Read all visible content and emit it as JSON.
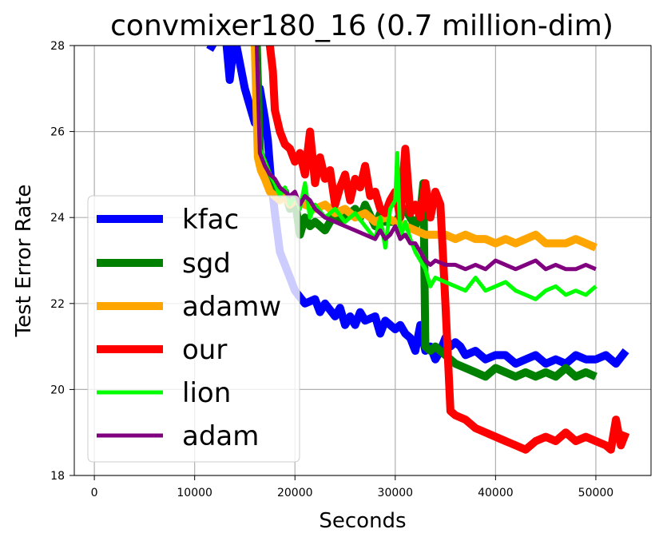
{
  "chart_data": {
    "type": "line",
    "title": "convmixer180_16 (0.7 million-dim)",
    "xlabel": "Seconds",
    "ylabel": "Test Error Rate",
    "xlim": [
      -2000,
      55500
    ],
    "ylim": [
      18,
      28
    ],
    "xticks": [
      0,
      10000,
      20000,
      30000,
      40000,
      50000
    ],
    "yticks": [
      18,
      20,
      22,
      24,
      26,
      28
    ],
    "grid": true,
    "legend_position": "lower-left",
    "series": [
      {
        "name": "kfac",
        "color": "#0000ff",
        "x": [
          11500,
          12500,
          13000,
          13500,
          14000,
          14500,
          15000,
          15500,
          16000,
          16500,
          17000,
          17300,
          17600,
          18000,
          18500,
          19000,
          19500,
          20000,
          21000,
          22000,
          22500,
          23000,
          24000,
          24500,
          25000,
          25500,
          26000,
          26500,
          27000,
          28000,
          28500,
          29000,
          29500,
          30000,
          30500,
          31000,
          31500,
          32000,
          32500,
          33000,
          33500,
          34000,
          34500,
          35000,
          35500,
          36000,
          36500,
          37000,
          38000,
          39000,
          40000,
          41000,
          42000,
          43000,
          44000,
          45000,
          46000,
          47000,
          48000,
          49000,
          50000,
          51000,
          52000,
          53000
        ],
        "values": [
          27.9,
          28.3,
          28.5,
          27.2,
          28.2,
          27.6,
          27.0,
          26.6,
          26.2,
          27.0,
          26.3,
          25.8,
          24.9,
          24.1,
          23.2,
          22.9,
          22.6,
          22.3,
          22.0,
          22.1,
          21.8,
          22.0,
          21.7,
          21.9,
          21.5,
          21.7,
          21.5,
          21.8,
          21.6,
          21.7,
          21.3,
          21.6,
          21.5,
          21.4,
          21.5,
          21.3,
          21.2,
          20.9,
          21.5,
          20.9,
          21.0,
          20.7,
          20.9,
          21.2,
          21.0,
          21.1,
          21.0,
          20.8,
          20.9,
          20.7,
          20.8,
          20.8,
          20.6,
          20.7,
          20.8,
          20.6,
          20.7,
          20.6,
          20.8,
          20.7,
          20.7,
          20.8,
          20.6,
          20.9
        ]
      },
      {
        "name": "sgd",
        "color": "#008000",
        "x": [
          16200,
          16500,
          17000,
          17500,
          18000,
          18500,
          19000,
          19500,
          20000,
          20500,
          21000,
          21500,
          22000,
          23000,
          24000,
          24500,
          25000,
          26000,
          26500,
          27000,
          28000,
          28500,
          29000,
          30000,
          31000,
          31500,
          32000,
          32500,
          32800,
          33000,
          33500,
          34000,
          35000,
          36000,
          37000,
          38000,
          39000,
          40000,
          41000,
          42000,
          43000,
          44000,
          45000,
          46000,
          47000,
          48000,
          49000,
          50000
        ],
        "values": [
          28.0,
          25.5,
          25.2,
          24.9,
          24.7,
          24.5,
          24.6,
          24.2,
          24.4,
          23.6,
          24.0,
          23.8,
          23.9,
          23.7,
          24.1,
          23.9,
          24.0,
          24.2,
          24.0,
          24.3,
          23.8,
          24.1,
          23.9,
          23.9,
          24.2,
          24.0,
          23.8,
          24.1,
          24.8,
          21.0,
          20.9,
          21.0,
          20.8,
          20.6,
          20.5,
          20.4,
          20.3,
          20.5,
          20.4,
          20.3,
          20.4,
          20.3,
          20.4,
          20.3,
          20.5,
          20.3,
          20.4,
          20.3
        ]
      },
      {
        "name": "adamw",
        "color": "#ffa500",
        "x": [
          16000,
          16300,
          16600,
          17000,
          17500,
          18000,
          18500,
          19000,
          19500,
          20000,
          21000,
          22000,
          23000,
          24000,
          25000,
          26000,
          27000,
          28000,
          29000,
          30000,
          31000,
          32000,
          33000,
          34000,
          35000,
          36000,
          37000,
          38000,
          39000,
          40000,
          41000,
          42000,
          43000,
          44000,
          45000,
          46000,
          47000,
          48000,
          49000,
          50000
        ],
        "values": [
          28.0,
          25.4,
          25.1,
          24.9,
          24.6,
          24.5,
          24.4,
          24.5,
          24.3,
          24.4,
          24.3,
          24.2,
          24.3,
          24.1,
          24.2,
          24.0,
          24.1,
          23.9,
          24.0,
          23.9,
          23.8,
          23.7,
          23.6,
          23.6,
          23.6,
          23.5,
          23.6,
          23.5,
          23.5,
          23.4,
          23.5,
          23.4,
          23.5,
          23.6,
          23.4,
          23.4,
          23.4,
          23.5,
          23.4,
          23.3
        ]
      },
      {
        "name": "our",
        "color": "#ff0000",
        "x": [
          17400,
          17800,
          18000,
          18500,
          19000,
          19500,
          20000,
          20500,
          21000,
          21500,
          22000,
          22500,
          23000,
          23500,
          24000,
          24500,
          25000,
          25500,
          26000,
          26500,
          27000,
          27500,
          28000,
          28500,
          29000,
          29500,
          30000,
          30500,
          31000,
          31500,
          32000,
          32500,
          33000,
          33500,
          34000,
          34500,
          35000,
          35500,
          36000,
          37000,
          38000,
          39000,
          40000,
          41000,
          42000,
          43000,
          44000,
          45000,
          46000,
          47000,
          48000,
          49000,
          50000,
          51000,
          51500,
          52000,
          52500,
          53000
        ],
        "values": [
          28.2,
          27.4,
          26.5,
          26.0,
          25.7,
          25.6,
          25.3,
          25.5,
          25.0,
          26.0,
          24.8,
          25.4,
          24.9,
          25.1,
          24.3,
          24.7,
          25.0,
          24.4,
          24.9,
          24.7,
          25.2,
          24.5,
          24.6,
          24.2,
          24.1,
          24.4,
          24.6,
          24.0,
          25.6,
          24.1,
          24.3,
          24.0,
          24.8,
          24.0,
          24.6,
          24.3,
          22.0,
          19.5,
          19.4,
          19.3,
          19.1,
          19.0,
          18.9,
          18.8,
          18.7,
          18.6,
          18.8,
          18.9,
          18.8,
          19.0,
          18.8,
          18.9,
          18.8,
          18.7,
          18.6,
          19.3,
          18.7,
          19.0
        ]
      },
      {
        "name": "lion",
        "color": "#00ff00",
        "x": [
          16200,
          16500,
          17000,
          17500,
          18000,
          18500,
          19000,
          19500,
          20000,
          20500,
          21000,
          21500,
          22000,
          23000,
          24000,
          25000,
          26000,
          27000,
          28000,
          28500,
          29000,
          29500,
          30000,
          30200,
          30500,
          31000,
          31500,
          32000,
          32500,
          33000,
          33500,
          34000,
          35000,
          36000,
          37000,
          38000,
          39000,
          40000,
          41000,
          42000,
          43000,
          44000,
          45000,
          46000,
          47000,
          48000,
          49000,
          50000
        ],
        "values": [
          28.0,
          25.6,
          25.3,
          25.0,
          24.8,
          24.5,
          24.7,
          24.3,
          24.5,
          24.2,
          24.8,
          24.0,
          24.3,
          24.0,
          24.2,
          23.9,
          24.1,
          23.8,
          23.5,
          24.0,
          23.3,
          24.2,
          24.4,
          25.5,
          23.5,
          23.9,
          23.5,
          23.2,
          23.0,
          22.8,
          22.4,
          22.6,
          22.5,
          22.4,
          22.3,
          22.6,
          22.3,
          22.4,
          22.5,
          22.3,
          22.2,
          22.1,
          22.3,
          22.4,
          22.2,
          22.3,
          22.2,
          22.4
        ]
      },
      {
        "name": "adam",
        "color": "#800080",
        "x": [
          16200,
          16500,
          17000,
          17500,
          18000,
          18500,
          19000,
          19500,
          20000,
          20500,
          21000,
          21500,
          22000,
          23000,
          24000,
          25000,
          26000,
          27000,
          28000,
          28500,
          29000,
          29500,
          30000,
          30500,
          31000,
          31500,
          32000,
          32500,
          33000,
          33500,
          34000,
          35000,
          36000,
          37000,
          38000,
          39000,
          40000,
          41000,
          42000,
          43000,
          44000,
          45000,
          46000,
          47000,
          48000,
          49000,
          50000
        ],
        "values": [
          28.0,
          25.5,
          25.2,
          25.0,
          24.9,
          24.7,
          24.6,
          24.5,
          24.6,
          24.3,
          24.5,
          24.4,
          24.2,
          24.0,
          23.9,
          23.8,
          23.7,
          23.6,
          23.5,
          23.7,
          23.5,
          23.6,
          23.8,
          23.5,
          23.6,
          23.4,
          23.4,
          23.2,
          23.0,
          22.9,
          23.0,
          22.9,
          22.9,
          22.8,
          22.9,
          22.8,
          23.0,
          22.9,
          22.8,
          22.9,
          23.0,
          22.8,
          22.9,
          22.8,
          22.8,
          22.9,
          22.8
        ]
      }
    ]
  }
}
